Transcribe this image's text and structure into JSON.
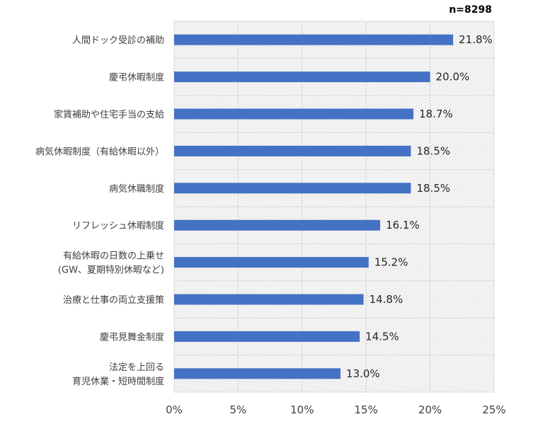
{
  "chart_data": {
    "type": "bar",
    "orientation": "horizontal",
    "sample_note": "n=8298",
    "categories": [
      [
        "人間ドック受診の補助"
      ],
      [
        "慶弔休暇制度"
      ],
      [
        "家賃補助や住宅手当の支給"
      ],
      [
        "病気休暇制度（有給休暇以外）"
      ],
      [
        "病気休職制度"
      ],
      [
        "リフレッシュ休暇制度"
      ],
      [
        "有給休暇の日数の上乗せ",
        "(GW、夏期特別休暇など)"
      ],
      [
        "治療と仕事の両立支援策"
      ],
      [
        "慶弔見舞金制度"
      ],
      [
        "法定を上回る",
        "育児休業・短時間制度"
      ]
    ],
    "values": [
      21.8,
      20.0,
      18.7,
      18.5,
      18.5,
      16.1,
      15.2,
      14.8,
      14.5,
      13.0
    ],
    "value_labels": [
      "21.8%",
      "20.0%",
      "18.7%",
      "18.5%",
      "18.5%",
      "16.1%",
      "15.2%",
      "14.8%",
      "14.5%",
      "13.0%"
    ],
    "xlim": [
      0,
      25
    ],
    "x_ticks": [
      0,
      5,
      10,
      15,
      20,
      25
    ],
    "x_tick_labels": [
      "0%",
      "5%",
      "10%",
      "15%",
      "20%",
      "25%"
    ],
    "bar_color": "#4472C4",
    "grid": true,
    "legend": "none"
  }
}
